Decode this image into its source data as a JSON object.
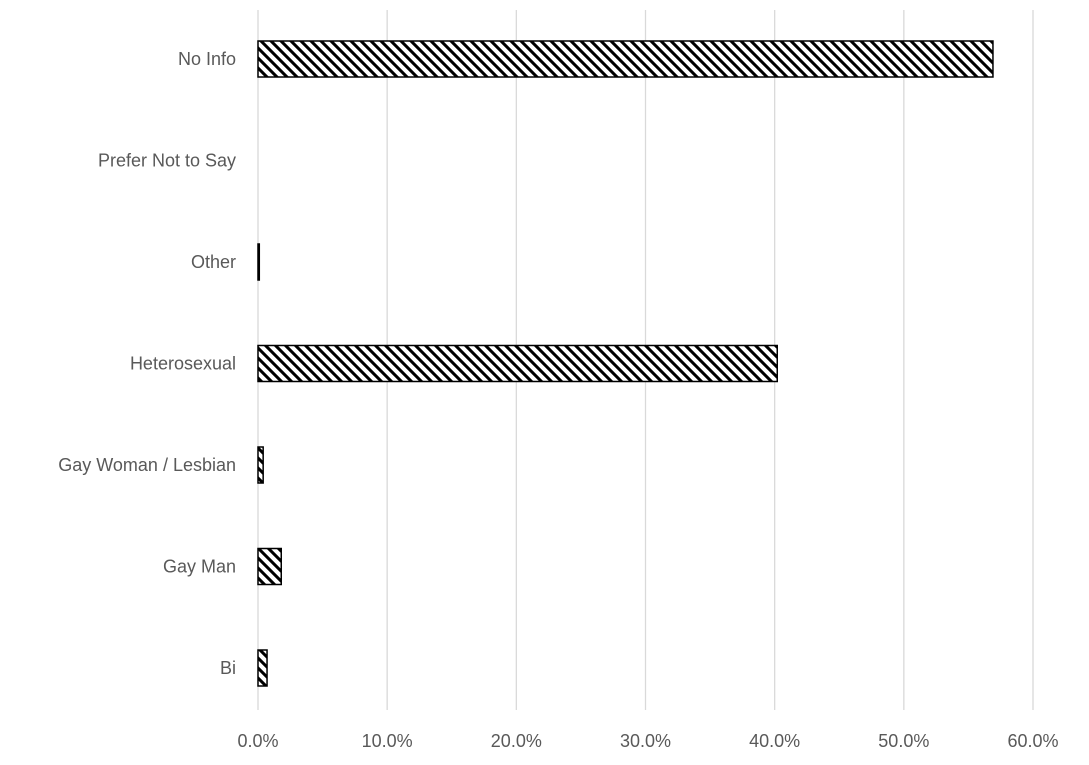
{
  "chart_data": {
    "type": "bar",
    "orientation": "horizontal",
    "categories": [
      "No Info",
      "Prefer Not to Say",
      "Other",
      "Heterosexual",
      "Gay Woman / Lesbian",
      "Gay Man",
      "Bi"
    ],
    "values": [
      56.9,
      0.0,
      0.1,
      40.2,
      0.4,
      1.8,
      0.7
    ],
    "xlim": [
      0,
      60
    ],
    "xticks": [
      0,
      10,
      20,
      30,
      40,
      50,
      60
    ],
    "xtick_labels": [
      "0.0%",
      "10.0%",
      "20.0%",
      "30.0%",
      "40.0%",
      "50.0%",
      "60.0%"
    ],
    "title": "",
    "xlabel": "",
    "ylabel": "",
    "grid": "vertical",
    "legend": "none",
    "bar_fill": "diagonal-hatch",
    "colors": {
      "bar_stroke": "#000000",
      "hatch": "#000000",
      "grid": "#d9d9d9",
      "text": "#595959"
    }
  }
}
